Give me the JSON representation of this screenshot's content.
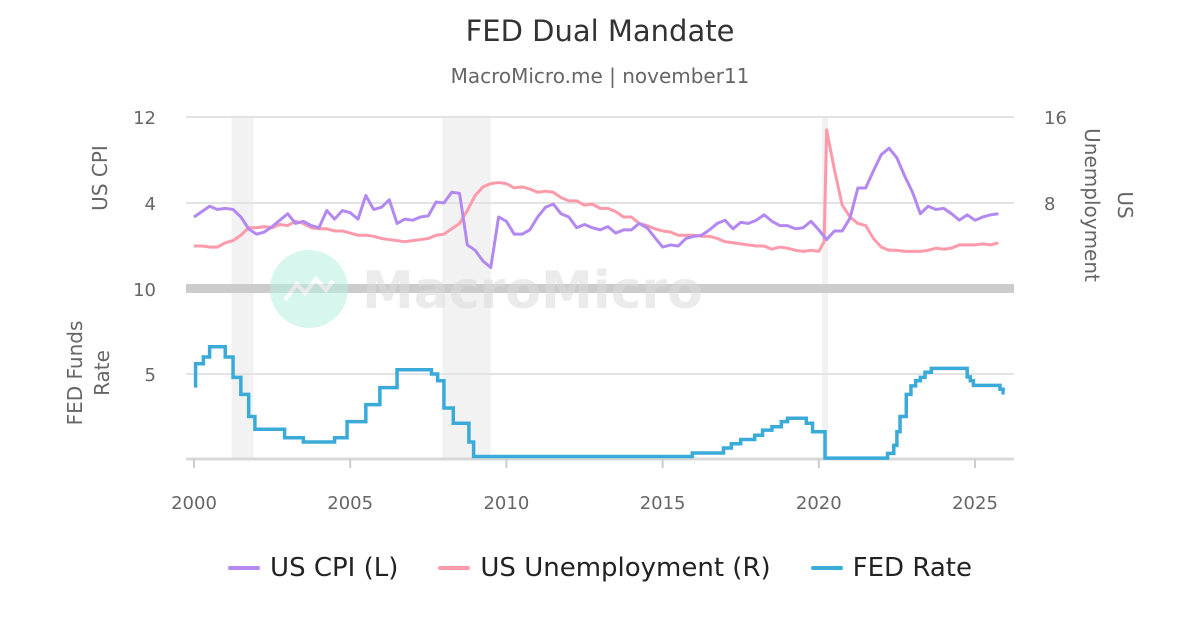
{
  "title": "FED Dual Mandate",
  "subtitle": "MacroMicro.me | november11",
  "watermark": "MacroMicro",
  "colors": {
    "cpi": "#b388f0",
    "unemployment": "#ff9aab",
    "fed": "#3aabd9",
    "recession": "#f2f2f2",
    "separator": "#cccccc"
  },
  "legend": [
    {
      "label": "US CPI (L)",
      "color": "#b388f0"
    },
    {
      "label": "US Unemployment (R)",
      "color": "#ff9aab"
    },
    {
      "label": "FED Rate",
      "color": "#3aabd9"
    }
  ],
  "chart_data": [
    {
      "type": "line",
      "panel": "top",
      "x_ticks": [
        "2000",
        "2005",
        "2010",
        "2015",
        "2020",
        "2025"
      ],
      "xlim": [
        2000,
        2026.2
      ],
      "recessions": [
        [
          2001.2,
          2001.9
        ],
        [
          2007.95,
          2009.5
        ],
        [
          2020.1,
          2020.3
        ]
      ],
      "left_axis": {
        "label": "US CPI",
        "ticks": [
          "12",
          "4"
        ],
        "ylim": [
          -4,
          12
        ]
      },
      "right_axis": {
        "label": "US Unemployment",
        "ticks": [
          "16",
          "8"
        ],
        "ylim": [
          0,
          16
        ]
      },
      "series": [
        {
          "name": "US CPI (L)",
          "axis": "left",
          "key": "cpi",
          "x": [
            2000,
            2000.25,
            2000.5,
            2000.75,
            2001,
            2001.25,
            2001.5,
            2001.75,
            2002,
            2002.25,
            2002.5,
            2002.75,
            2003,
            2003.25,
            2003.5,
            2003.75,
            2004,
            2004.25,
            2004.5,
            2004.75,
            2005,
            2005.25,
            2005.5,
            2005.75,
            2006,
            2006.25,
            2006.5,
            2006.75,
            2007,
            2007.25,
            2007.5,
            2007.75,
            2008,
            2008.25,
            2008.5,
            2008.75,
            2009,
            2009.25,
            2009.5,
            2009.75,
            2010,
            2010.25,
            2010.5,
            2010.75,
            2011,
            2011.25,
            2011.5,
            2011.75,
            2012,
            2012.25,
            2012.5,
            2012.75,
            2013,
            2013.25,
            2013.5,
            2013.75,
            2014,
            2014.25,
            2014.5,
            2014.75,
            2015,
            2015.25,
            2015.5,
            2015.75,
            2016,
            2016.25,
            2016.5,
            2016.75,
            2017,
            2017.25,
            2017.5,
            2017.75,
            2018,
            2018.25,
            2018.5,
            2018.75,
            2019,
            2019.25,
            2019.5,
            2019.75,
            2020,
            2020.25,
            2020.5,
            2020.75,
            2021,
            2021.25,
            2021.5,
            2021.75,
            2022,
            2022.25,
            2022.5,
            2022.75,
            2023,
            2023.25,
            2023.5,
            2023.75,
            2024,
            2024.25,
            2024.5,
            2024.75,
            2025,
            2025.25,
            2025.5,
            2025.75
          ],
          "y": [
            2.7,
            3.2,
            3.7,
            3.4,
            3.5,
            3.4,
            2.7,
            1.6,
            1.1,
            1.3,
            1.8,
            2.4,
            3.0,
            2.1,
            2.3,
            1.9,
            1.7,
            3.3,
            2.5,
            3.3,
            3.1,
            2.5,
            4.7,
            3.4,
            3.6,
            4.3,
            2.1,
            2.5,
            2.4,
            2.7,
            2.8,
            4.1,
            4.0,
            5.0,
            4.9,
            0.1,
            -0.4,
            -1.4,
            -2.0,
            2.7,
            2.3,
            1.1,
            1.1,
            1.5,
            2.7,
            3.6,
            3.9,
            3.0,
            2.7,
            1.7,
            2.0,
            1.7,
            1.5,
            1.8,
            1.2,
            1.5,
            1.5,
            2.1,
            1.7,
            0.8,
            -0.1,
            0.1,
            0.0,
            0.7,
            0.9,
            1.0,
            1.5,
            2.1,
            2.4,
            1.6,
            2.2,
            2.1,
            2.4,
            2.9,
            2.3,
            1.9,
            1.9,
            1.6,
            1.7,
            2.3,
            1.5,
            0.6,
            1.4,
            1.4,
            2.6,
            5.4,
            5.4,
            7.0,
            8.5,
            9.1,
            8.2,
            6.5,
            5.0,
            3.0,
            3.7,
            3.4,
            3.5,
            3.0,
            2.4,
            2.9,
            2.4,
            2.7,
            2.9,
            3.0
          ]
        },
        {
          "name": "US Unemployment (R)",
          "axis": "right",
          "key": "unemployment",
          "x": [
            2000,
            2000.25,
            2000.5,
            2000.75,
            2001,
            2001.25,
            2001.5,
            2001.75,
            2002,
            2002.25,
            2002.5,
            2002.75,
            2003,
            2003.25,
            2003.5,
            2003.75,
            2004,
            2004.25,
            2004.5,
            2004.75,
            2005,
            2005.25,
            2005.5,
            2005.75,
            2006,
            2006.25,
            2006.5,
            2006.75,
            2007,
            2007.25,
            2007.5,
            2007.75,
            2008,
            2008.25,
            2008.5,
            2008.75,
            2009,
            2009.25,
            2009.5,
            2009.75,
            2010,
            2010.25,
            2010.5,
            2010.75,
            2011,
            2011.25,
            2011.5,
            2011.75,
            2012,
            2012.25,
            2012.5,
            2012.75,
            2013,
            2013.25,
            2013.5,
            2013.75,
            2014,
            2014.25,
            2014.5,
            2014.75,
            2015,
            2015.25,
            2015.5,
            2015.75,
            2016,
            2016.25,
            2016.5,
            2016.75,
            2017,
            2017.25,
            2017.5,
            2017.75,
            2018,
            2018.25,
            2018.5,
            2018.75,
            2019,
            2019.25,
            2019.5,
            2019.75,
            2020,
            2020.17,
            2020.25,
            2020.5,
            2020.75,
            2021,
            2021.25,
            2021.5,
            2021.75,
            2022,
            2022.25,
            2022.5,
            2022.75,
            2023,
            2023.25,
            2023.5,
            2023.75,
            2024,
            2024.25,
            2024.5,
            2024.75,
            2025,
            2025.25,
            2025.5,
            2025.75
          ],
          "y": [
            4.0,
            4.0,
            3.9,
            3.9,
            4.3,
            4.5,
            5.0,
            5.7,
            5.7,
            5.8,
            5.7,
            6.0,
            5.9,
            6.3,
            6.1,
            5.7,
            5.6,
            5.6,
            5.4,
            5.4,
            5.2,
            5.0,
            5.0,
            4.9,
            4.7,
            4.6,
            4.5,
            4.4,
            4.5,
            4.6,
            4.7,
            5.0,
            5.1,
            5.6,
            6.1,
            7.3,
            8.7,
            9.5,
            9.8,
            9.9,
            9.8,
            9.4,
            9.5,
            9.3,
            9.0,
            9.1,
            9.0,
            8.5,
            8.2,
            8.2,
            7.8,
            7.9,
            7.5,
            7.5,
            7.2,
            6.7,
            6.7,
            6.1,
            5.9,
            5.6,
            5.4,
            5.3,
            5.0,
            5.0,
            5.0,
            4.9,
            4.9,
            4.7,
            4.4,
            4.3,
            4.2,
            4.1,
            4.0,
            4.0,
            3.7,
            3.9,
            3.8,
            3.6,
            3.5,
            3.6,
            3.5,
            4.4,
            14.8,
            11.1,
            7.8,
            6.7,
            6.1,
            5.9,
            4.7,
            3.9,
            3.6,
            3.6,
            3.5,
            3.5,
            3.5,
            3.6,
            3.8,
            3.7,
            3.8,
            4.1,
            4.1,
            4.1,
            4.2,
            4.1,
            4.3
          ]
        }
      ]
    },
    {
      "type": "line",
      "panel": "bottom",
      "left_axis": {
        "label": "FED Funds Rate",
        "ticks": [
          "10",
          "5"
        ],
        "ylim": [
          0,
          10
        ]
      },
      "series": [
        {
          "name": "FED Rate",
          "key": "fed",
          "step": true,
          "x": [
            2000,
            2000.05,
            2000.3,
            2000.5,
            2001,
            2001.25,
            2001.5,
            2001.75,
            2001.95,
            2002.9,
            2003.5,
            2004.5,
            2004.9,
            2005.5,
            2005.95,
            2006.5,
            2007.6,
            2007.8,
            2008.0,
            2008.3,
            2008.8,
            2008.95,
            2015.95,
            2016.95,
            2017.2,
            2017.5,
            2017.95,
            2018.2,
            2018.5,
            2018.8,
            2019.0,
            2019.5,
            2019.6,
            2019.8,
            2020.2,
            2022.2,
            2022.4,
            2022.5,
            2022.6,
            2022.8,
            2022.95,
            2023.1,
            2023.25,
            2023.4,
            2023.6,
            2024.7,
            2024.75,
            2024.85,
            2024.95,
            2025.7,
            2025.8,
            2025.9
          ],
          "y": [
            4.3,
            5.6,
            6.0,
            6.6,
            6.0,
            4.8,
            3.8,
            2.5,
            1.75,
            1.25,
            1.0,
            1.25,
            2.2,
            3.2,
            4.2,
            5.25,
            5.0,
            4.6,
            3.0,
            2.1,
            1.0,
            0.15,
            0.35,
            0.65,
            0.9,
            1.15,
            1.4,
            1.7,
            1.9,
            2.2,
            2.4,
            2.4,
            2.1,
            1.6,
            0.05,
            0.33,
            0.8,
            1.6,
            2.5,
            3.8,
            4.3,
            4.6,
            4.8,
            5.1,
            5.33,
            5.33,
            4.83,
            4.6,
            4.33,
            4.33,
            4.1,
            3.9
          ]
        }
      ]
    }
  ]
}
